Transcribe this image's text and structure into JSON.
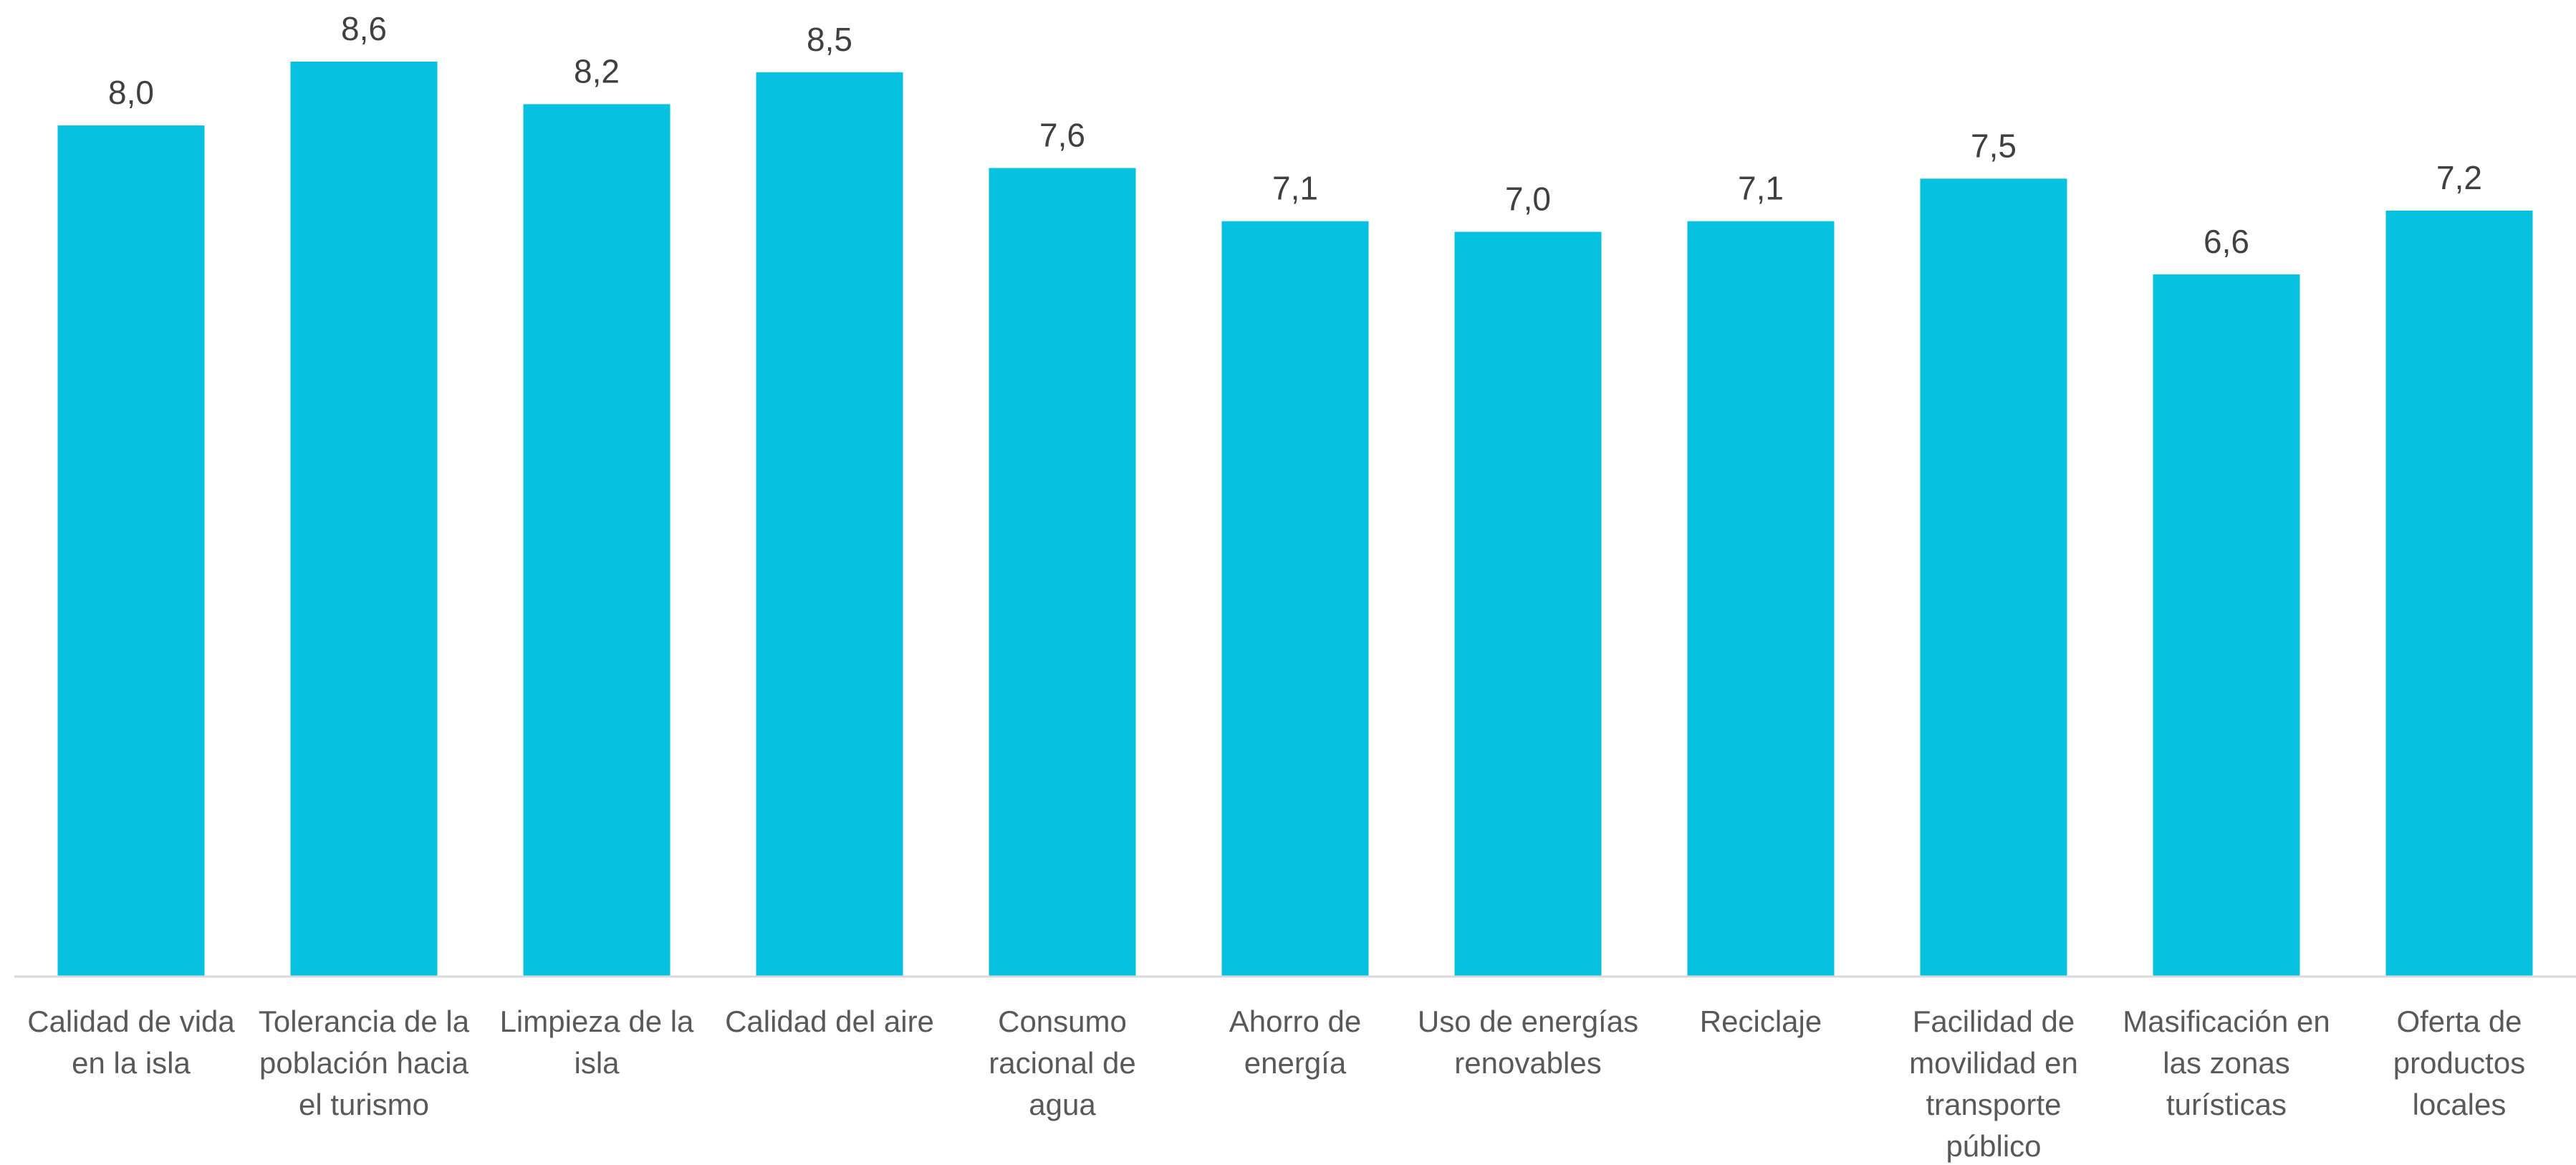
{
  "chart_data": {
    "type": "bar",
    "categories": [
      [
        "Calidad de vida",
        "en la isla"
      ],
      [
        "Tolerancia de la",
        "población hacia",
        "el turismo"
      ],
      [
        "Limpieza de la",
        "isla"
      ],
      [
        "Calidad del aire"
      ],
      [
        "Consumo",
        "racional de",
        "agua"
      ],
      [
        "Ahorro de",
        "energía"
      ],
      [
        "Uso de energías",
        "renovables"
      ],
      [
        "Reciclaje"
      ],
      [
        "Facilidad de",
        "movilidad en",
        "transporte",
        "público"
      ],
      [
        "Masificación en",
        "las zonas",
        "turísticas"
      ],
      [
        "Oferta de",
        "productos",
        "locales"
      ]
    ],
    "values": [
      8.0,
      8.6,
      8.2,
      8.5,
      7.6,
      7.1,
      7.0,
      7.1,
      7.5,
      6.6,
      7.2
    ],
    "value_labels": [
      "8,0",
      "8,6",
      "8,2",
      "8,5",
      "7,6",
      "7,1",
      "7,0",
      "7,1",
      "7,5",
      "6,6",
      "7,2"
    ],
    "ylim": [
      0,
      8.6
    ],
    "bar_color": "#06C1DF",
    "axis_color": "#D9D9D9",
    "grid": false,
    "legend": "none"
  }
}
